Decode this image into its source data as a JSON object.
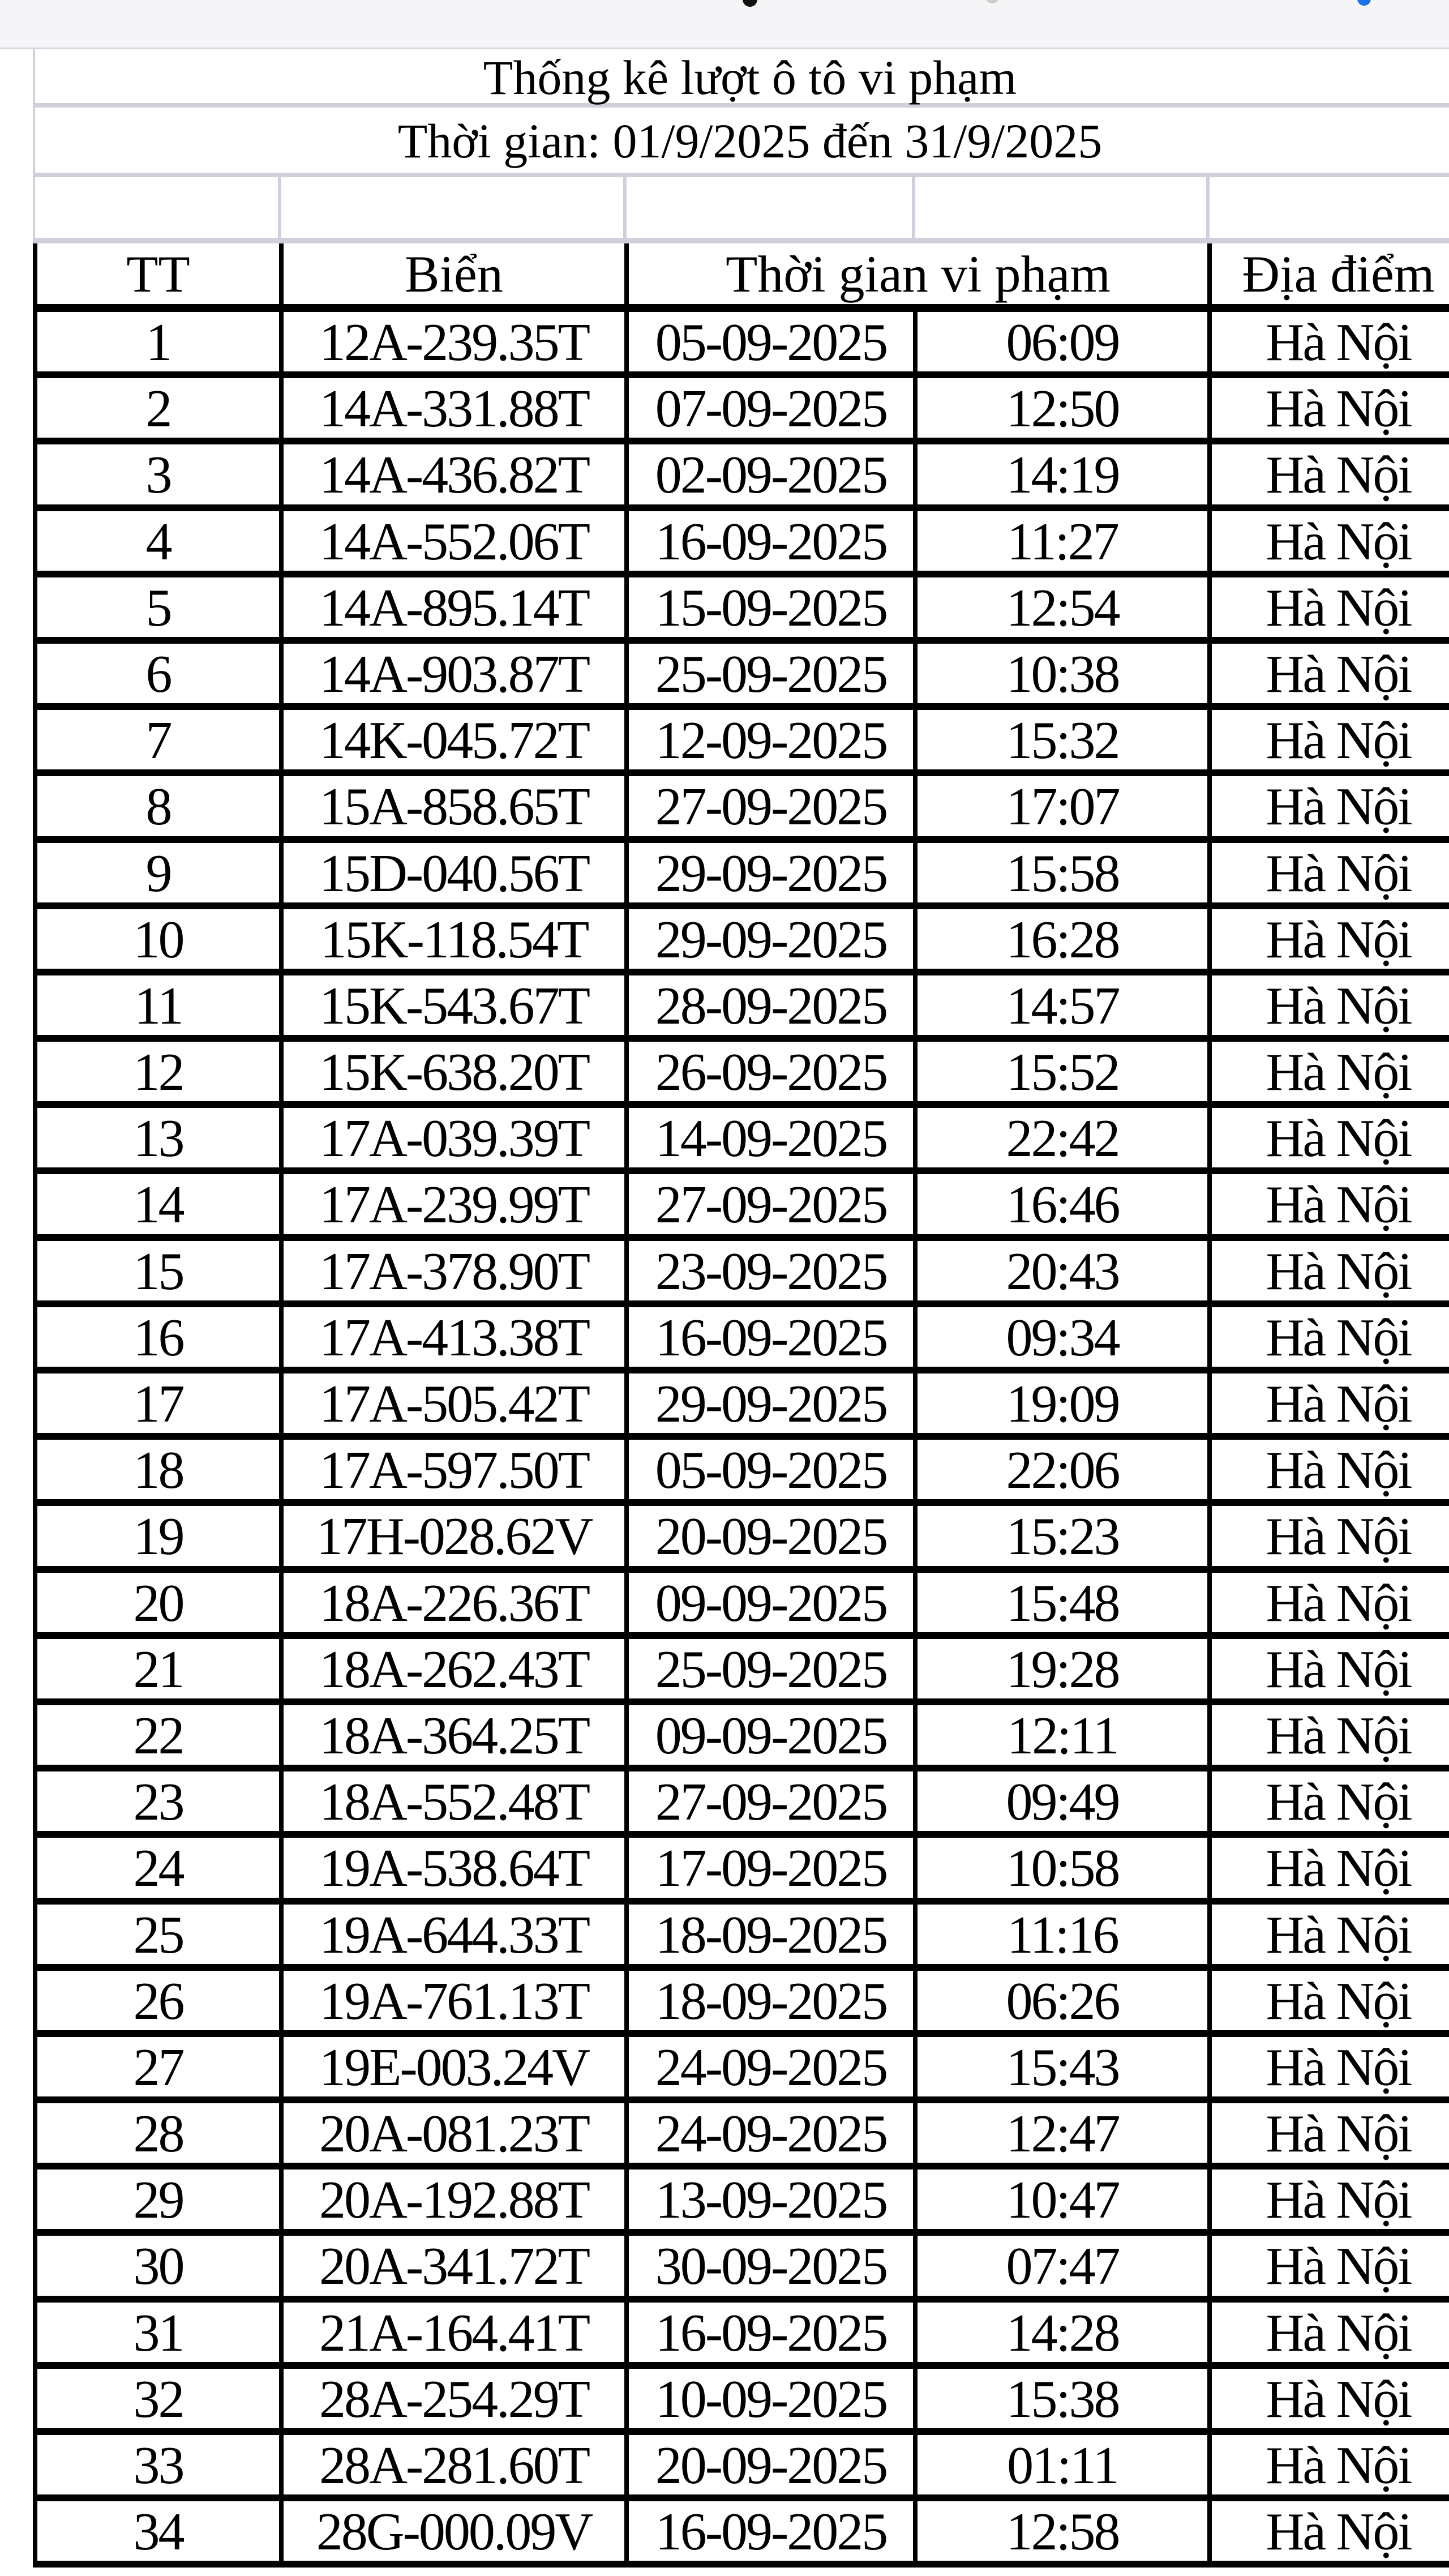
{
  "title": "Thống kê lượt ô tô vi phạm",
  "subtitle": "Thời gian: 01/9/2025 đến 31/9/2025",
  "headers": {
    "tt": "TT",
    "plate": "Biển",
    "time": "Thời gian vi phạm",
    "place": "Địa điểm"
  },
  "rows": [
    [
      "1",
      "12A-239.35T",
      "05-09-2025",
      "06:09",
      "Hà Nội"
    ],
    [
      "2",
      "14A-331.88T",
      "07-09-2025",
      "12:50",
      "Hà Nội"
    ],
    [
      "3",
      "14A-436.82T",
      "02-09-2025",
      "14:19",
      "Hà Nội"
    ],
    [
      "4",
      "14A-552.06T",
      "16-09-2025",
      "11:27",
      "Hà Nội"
    ],
    [
      "5",
      "14A-895.14T",
      "15-09-2025",
      "12:54",
      "Hà Nội"
    ],
    [
      "6",
      "14A-903.87T",
      "25-09-2025",
      "10:38",
      "Hà Nội"
    ],
    [
      "7",
      "14K-045.72T",
      "12-09-2025",
      "15:32",
      "Hà Nội"
    ],
    [
      "8",
      "15A-858.65T",
      "27-09-2025",
      "17:07",
      "Hà Nội"
    ],
    [
      "9",
      "15D-040.56T",
      "29-09-2025",
      "15:58",
      "Hà Nội"
    ],
    [
      "10",
      "15K-118.54T",
      "29-09-2025",
      "16:28",
      "Hà Nội"
    ],
    [
      "11",
      "15K-543.67T",
      "28-09-2025",
      "14:57",
      "Hà Nội"
    ],
    [
      "12",
      "15K-638.20T",
      "26-09-2025",
      "15:52",
      "Hà Nội"
    ],
    [
      "13",
      "17A-039.39T",
      "14-09-2025",
      "22:42",
      "Hà Nội"
    ],
    [
      "14",
      "17A-239.99T",
      "27-09-2025",
      "16:46",
      "Hà Nội"
    ],
    [
      "15",
      "17A-378.90T",
      "23-09-2025",
      "20:43",
      "Hà Nội"
    ],
    [
      "16",
      "17A-413.38T",
      "16-09-2025",
      "09:34",
      "Hà Nội"
    ],
    [
      "17",
      "17A-505.42T",
      "29-09-2025",
      "19:09",
      "Hà Nội"
    ],
    [
      "18",
      "17A-597.50T",
      "05-09-2025",
      "22:06",
      "Hà Nội"
    ],
    [
      "19",
      "17H-028.62V",
      "20-09-2025",
      "15:23",
      "Hà Nội"
    ],
    [
      "20",
      "18A-226.36T",
      "09-09-2025",
      "15:48",
      "Hà Nội"
    ],
    [
      "21",
      "18A-262.43T",
      "25-09-2025",
      "19:28",
      "Hà Nội"
    ],
    [
      "22",
      "18A-364.25T",
      "09-09-2025",
      "12:11",
      "Hà Nội"
    ],
    [
      "23",
      "18A-552.48T",
      "27-09-2025",
      "09:49",
      "Hà Nội"
    ],
    [
      "24",
      "19A-538.64T",
      "17-09-2025",
      "10:58",
      "Hà Nội"
    ],
    [
      "25",
      "19A-644.33T",
      "18-09-2025",
      "11:16",
      "Hà Nội"
    ],
    [
      "26",
      "19A-761.13T",
      "18-09-2025",
      "06:26",
      "Hà Nội"
    ],
    [
      "27",
      "19E-003.24V",
      "24-09-2025",
      "15:43",
      "Hà Nội"
    ],
    [
      "28",
      "20A-081.23T",
      "24-09-2025",
      "12:47",
      "Hà Nội"
    ],
    [
      "29",
      "20A-192.88T",
      "13-09-2025",
      "10:47",
      "Hà Nội"
    ],
    [
      "30",
      "20A-341.72T",
      "30-09-2025",
      "07:47",
      "Hà Nội"
    ],
    [
      "31",
      "21A-164.41T",
      "16-09-2025",
      "14:28",
      "Hà Nội"
    ],
    [
      "32",
      "28A-254.29T",
      "10-09-2025",
      "15:38",
      "Hà Nội"
    ],
    [
      "33",
      "28A-281.60T",
      "20-09-2025",
      "01:11",
      "Hà Nội"
    ],
    [
      "34",
      "28G-000.09V",
      "16-09-2025",
      "12:58",
      "Hà Nội"
    ]
  ]
}
